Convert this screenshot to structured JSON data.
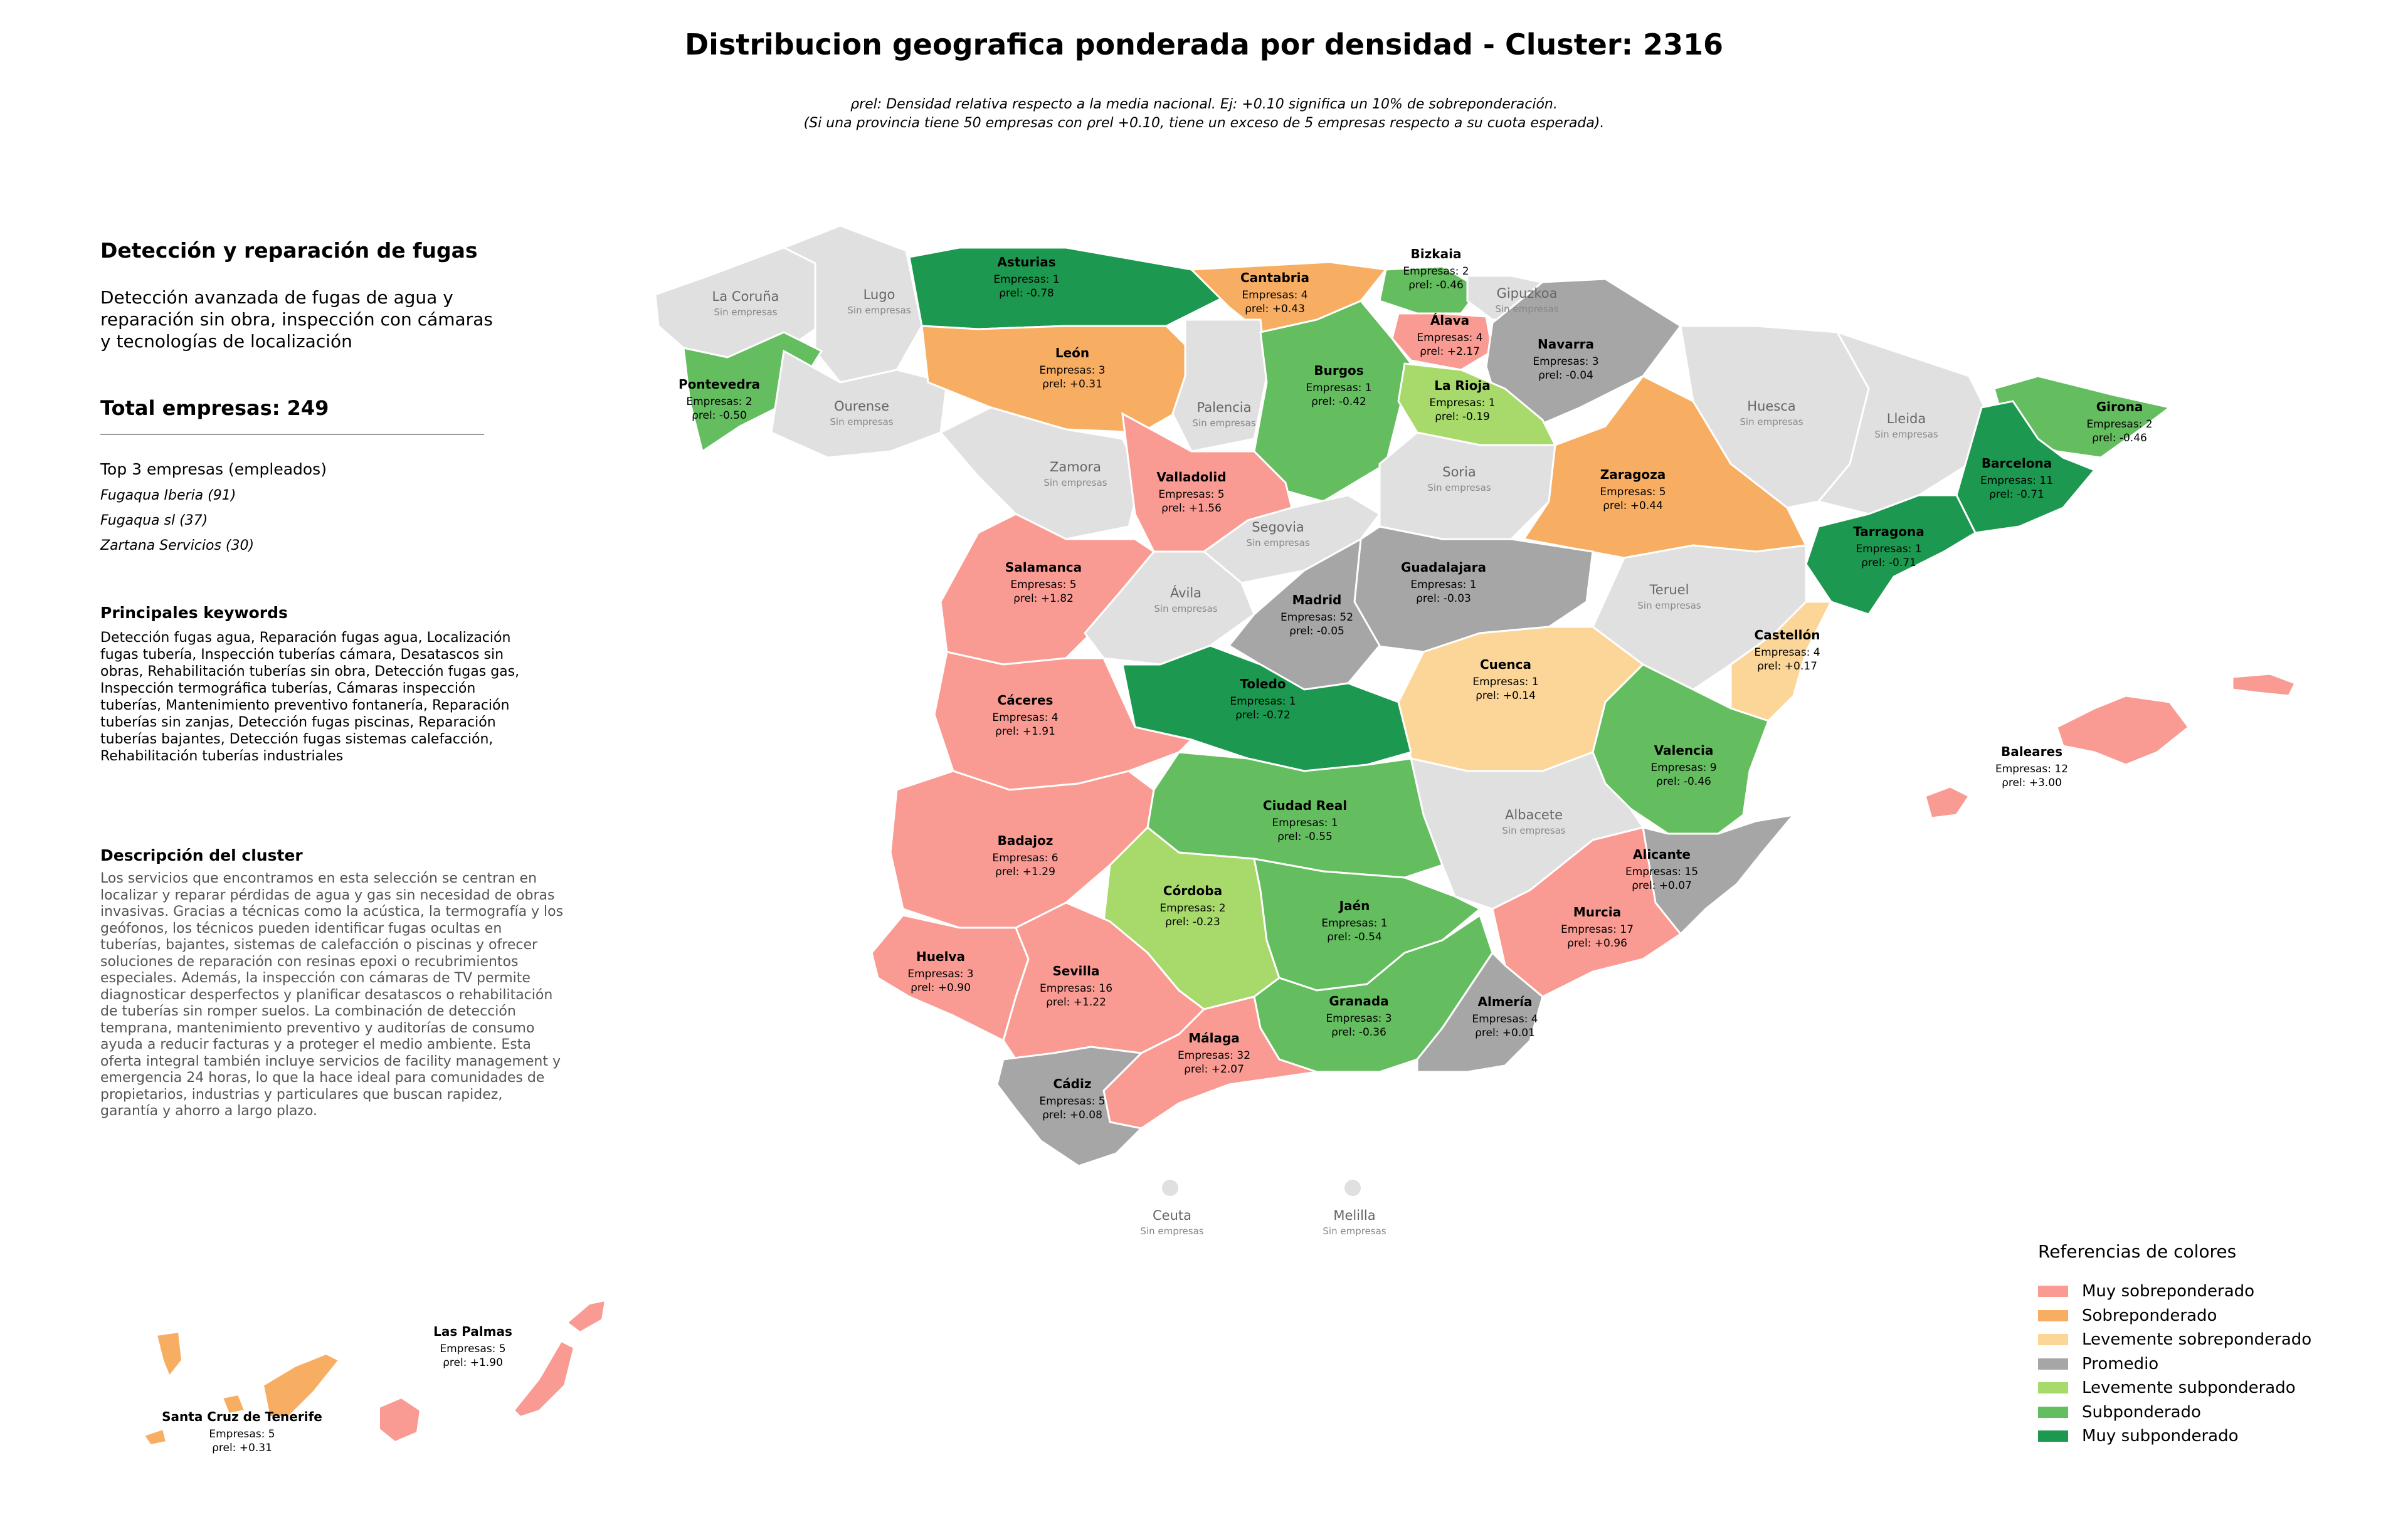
{
  "title": "Distribucion geografica ponderada por densidad - Cluster: 2316",
  "subtitle_line1": "ρrel: Densidad relativa respecto a la media nacional. Ej: +0.10 significa un 10% de sobreponderación.",
  "subtitle_line2": "(Si una provincia tiene 50 empresas con ρrel +0.10, tiene un exceso de 5 empresas respecto a su cuota esperada).",
  "panel": {
    "title": "Detección y reparación de fugas",
    "description": "Detección avanzada de fugas de agua y reparación sin obra, inspección con cámaras y tecnologías de localización",
    "total": "Total empresas: 249",
    "top3_title": "Top 3 empresas (empleados)",
    "top3": [
      "Fugaqua Iberia (91)",
      "Fugaqua sl (37)",
      "Zartana Servicios (30)"
    ],
    "keywords_title": "Principales keywords",
    "keywords": "Detección fugas agua, Reparación fugas agua, Localización fugas tubería, Inspección tuberías cámara, Desatascos sin obras, Rehabilitación tuberías sin obra, Detección fugas gas, Inspección termográfica tuberías, Cámaras inspección tuberías, Mantenimiento preventivo fontanería, Reparación tuberías sin zanjas, Detección fugas piscinas, Reparación tuberías bajantes, Detección fugas sistemas calefacción, Rehabilitación tuberías industriales",
    "cluster_desc_title": "Descripción del cluster",
    "cluster_desc": "Los servicios que encontramos en esta selección se centran en localizar y reparar pérdidas de agua y gas sin necesidad de obras invasivas. Gracias a técnicas como la acústica, la termografía y los geófonos, los técnicos pueden identificar fugas ocultas en tuberías, bajantes, sistemas de calefacción o piscinas y ofrecer soluciones de reparación con resinas epoxi o recubrimientos especiales. Además, la inspección con cámaras de TV permite diagnosticar desperfectos y planificar desatascos o rehabilitación de tuberías sin romper suelos. La combinación de detección temprana, mantenimiento preventivo y auditorías de consumo ayuda a reducir facturas y a proteger el medio ambiente. Esta oferta integral también incluye servicios de facility management y emergencia 24 horas, lo que la hace ideal para comunidades de propietarios, industrias y particulares que buscan rapidez, garantía y ahorro a largo plazo."
  },
  "legend": {
    "title": "Referencias de colores",
    "items": [
      {
        "label": "Muy sobreponderado",
        "color": "#f99b93"
      },
      {
        "label": "Sobreponderado",
        "color": "#f8ae62"
      },
      {
        "label": "Levemente sobreponderado",
        "color": "#fcd699"
      },
      {
        "label": "Promedio",
        "color": "#a6a6a6"
      },
      {
        "label": "Levemente subponderado",
        "color": "#a7d96b"
      },
      {
        "label": "Subponderado",
        "color": "#64bd5f"
      },
      {
        "label": "Muy subponderado",
        "color": "#1d9850"
      }
    ]
  },
  "map_labels": {
    "empresas_prefix": "Empresas: ",
    "rho_prefix": "ρrel: ",
    "sin_empresas": "Sin empresas"
  },
  "provinces": [
    {
      "name": "Asturias",
      "count": 1,
      "rho": "-0.78",
      "category": "Muy subponderado"
    },
    {
      "name": "Cantabria",
      "count": 4,
      "rho": "+0.43",
      "category": "Sobreponderado"
    },
    {
      "name": "Bizkaia",
      "count": 2,
      "rho": "-0.46",
      "category": "Subponderado"
    },
    {
      "name": "Álava",
      "count": 4,
      "rho": "+2.17",
      "category": "Muy sobreponderado"
    },
    {
      "name": "Navarra",
      "count": 3,
      "rho": "-0.04",
      "category": "Promedio"
    },
    {
      "name": "León",
      "count": 3,
      "rho": "+0.31",
      "category": "Sobreponderado"
    },
    {
      "name": "Burgos",
      "count": 1,
      "rho": "-0.42",
      "category": "Subponderado"
    },
    {
      "name": "La Rioja",
      "count": 1,
      "rho": "-0.19",
      "category": "Levemente subponderado"
    },
    {
      "name": "Pontevedra",
      "count": 2,
      "rho": "-0.50",
      "category": "Subponderado"
    },
    {
      "name": "Girona",
      "count": 2,
      "rho": "-0.46",
      "category": "Subponderado"
    },
    {
      "name": "Barcelona",
      "count": 11,
      "rho": "-0.71",
      "category": "Muy subponderado"
    },
    {
      "name": "Zaragoza",
      "count": 5,
      "rho": "+0.44",
      "category": "Sobreponderado"
    },
    {
      "name": "Valladolid",
      "count": 5,
      "rho": "+1.56",
      "category": "Muy sobreponderado"
    },
    {
      "name": "Tarragona",
      "count": 1,
      "rho": "-0.71",
      "category": "Muy subponderado"
    },
    {
      "name": "Guadalajara",
      "count": 1,
      "rho": "-0.03",
      "category": "Promedio"
    },
    {
      "name": "Salamanca",
      "count": 5,
      "rho": "+1.82",
      "category": "Muy sobreponderado"
    },
    {
      "name": "Madrid",
      "count": 52,
      "rho": "-0.05",
      "category": "Promedio"
    },
    {
      "name": "Castellón",
      "count": 4,
      "rho": "+0.17",
      "category": "Levemente sobreponderado"
    },
    {
      "name": "Cuenca",
      "count": 1,
      "rho": "+0.14",
      "category": "Levemente sobreponderado"
    },
    {
      "name": "Toledo",
      "count": 1,
      "rho": "-0.72",
      "category": "Muy subponderado"
    },
    {
      "name": "Cáceres",
      "count": 4,
      "rho": "+1.91",
      "category": "Muy sobreponderado"
    },
    {
      "name": "Valencia",
      "count": 9,
      "rho": "-0.46",
      "category": "Subponderado"
    },
    {
      "name": "Baleares",
      "count": 12,
      "rho": "+3.00",
      "category": "Muy sobreponderado"
    },
    {
      "name": "Ciudad Real",
      "count": 1,
      "rho": "-0.55",
      "category": "Subponderado"
    },
    {
      "name": "Badajoz",
      "count": 6,
      "rho": "+1.29",
      "category": "Muy sobreponderado"
    },
    {
      "name": "Alicante",
      "count": 15,
      "rho": "+0.07",
      "category": "Promedio"
    },
    {
      "name": "Córdoba",
      "count": 2,
      "rho": "-0.23",
      "category": "Levemente subponderado"
    },
    {
      "name": "Jaén",
      "count": 1,
      "rho": "-0.54",
      "category": "Subponderado"
    },
    {
      "name": "Murcia",
      "count": 17,
      "rho": "+0.96",
      "category": "Muy sobreponderado"
    },
    {
      "name": "Huelva",
      "count": 3,
      "rho": "+0.90",
      "category": "Muy sobreponderado"
    },
    {
      "name": "Sevilla",
      "count": 16,
      "rho": "+1.22",
      "category": "Muy sobreponderado"
    },
    {
      "name": "Granada",
      "count": 3,
      "rho": "-0.36",
      "category": "Subponderado"
    },
    {
      "name": "Almería",
      "count": 4,
      "rho": "+0.01",
      "category": "Promedio"
    },
    {
      "name": "Málaga",
      "count": 32,
      "rho": "+2.07",
      "category": "Muy sobreponderado"
    },
    {
      "name": "Cádiz",
      "count": 5,
      "rho": "+0.08",
      "category": "Promedio"
    },
    {
      "name": "Las Palmas",
      "count": 5,
      "rho": "+1.90",
      "category": "Muy sobreponderado"
    },
    {
      "name": "Santa Cruz de Tenerife",
      "count": 5,
      "rho": "+0.31",
      "category": "Sobreponderado"
    }
  ],
  "empty_provinces": [
    "La Coruña",
    "Lugo",
    "Gipuzkoa",
    "Ourense",
    "Palencia",
    "Huesca",
    "Lleida",
    "Zamora",
    "Soria",
    "Segovia",
    "Ávila",
    "Teruel",
    "Albacete",
    "Ceuta",
    "Melilla"
  ]
}
